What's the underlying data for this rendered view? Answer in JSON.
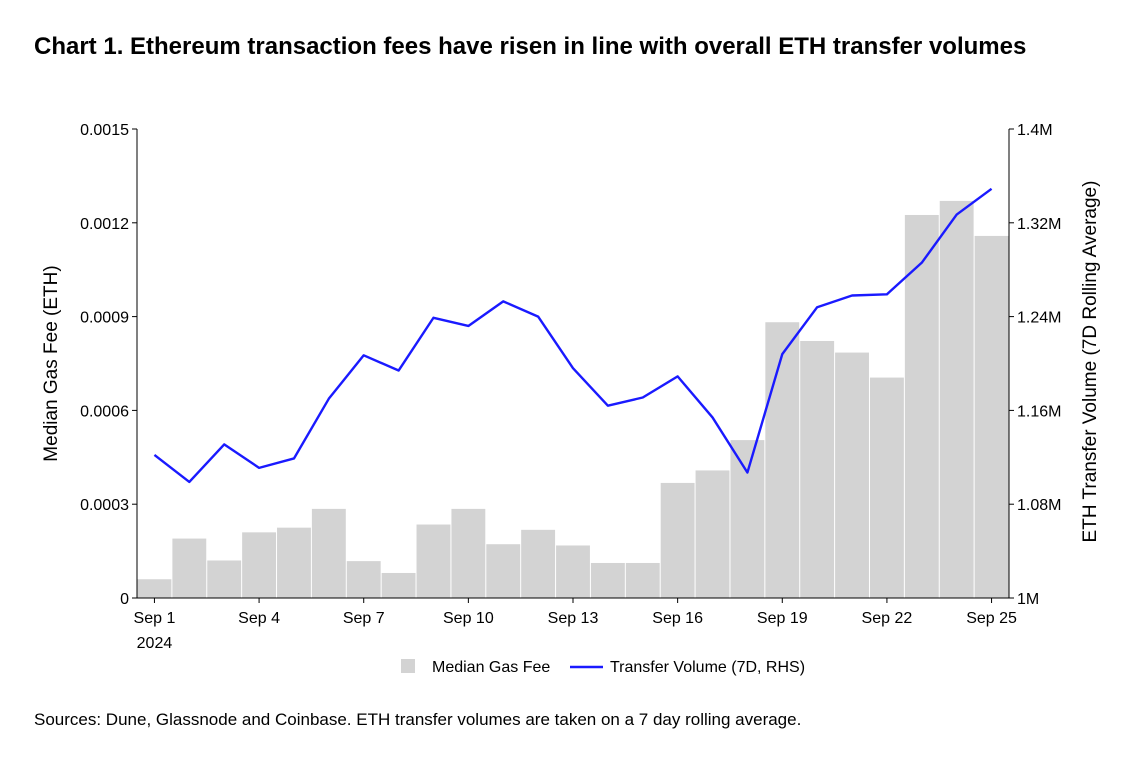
{
  "page": {
    "title": "Chart 1. Ethereum transaction fees have risen in line with overall ETH transfer volumes",
    "source": "Sources: Dune, Glassnode and Coinbase. ETH transfer volumes are taken on a 7 day rolling average."
  },
  "chart_data": {
    "type": "bar",
    "title": "Chart 1. Ethereum transaction fees have risen in line with overall ETH transfer volumes",
    "categories": [
      "Sep 1",
      "Sep 2",
      "Sep 3",
      "Sep 4",
      "Sep 5",
      "Sep 6",
      "Sep 7",
      "Sep 8",
      "Sep 9",
      "Sep 10",
      "Sep 11",
      "Sep 12",
      "Sep 13",
      "Sep 14",
      "Sep 15",
      "Sep 16",
      "Sep 17",
      "Sep 18",
      "Sep 19",
      "Sep 20",
      "Sep 21",
      "Sep 22",
      "Sep 23",
      "Sep 24",
      "Sep 25"
    ],
    "x_tick_labels": [
      {
        "label": "Sep 1",
        "sublabel": "2024",
        "index": 0
      },
      {
        "label": "Sep 4",
        "index": 3
      },
      {
        "label": "Sep 7",
        "index": 6
      },
      {
        "label": "Sep 10",
        "index": 9
      },
      {
        "label": "Sep 13",
        "index": 12
      },
      {
        "label": "Sep 16",
        "index": 15
      },
      {
        "label": "Sep 19",
        "index": 18
      },
      {
        "label": "Sep 22",
        "index": 21
      },
      {
        "label": "Sep 25",
        "index": 24
      }
    ],
    "ylabel": "Median Gas Fee (ETH)",
    "y2label": "ETH Transfer Volume (7D Rolling Average)",
    "ylim": [
      0,
      0.0015
    ],
    "y2lim": [
      1000000,
      1400000
    ],
    "yticks": [
      "0",
      "0.0003",
      "0.0006",
      "0.0009",
      "0.0012",
      "0.0015"
    ],
    "y2ticks": [
      "1M",
      "1.08M",
      "1.16M",
      "1.24M",
      "1.32M",
      "1.4M"
    ],
    "grid": false,
    "legend_position": "bottom",
    "series": [
      {
        "name": "Median Gas Fee",
        "type": "bar",
        "axis": "left",
        "color": "#d3d3d3",
        "values": [
          6e-05,
          0.00019,
          0.00012,
          0.00021,
          0.000225,
          0.000285,
          0.000118,
          8e-05,
          0.000235,
          0.000285,
          0.000172,
          0.000218,
          0.000168,
          0.000112,
          0.000112,
          0.000368,
          0.000408,
          0.000505,
          0.000882,
          0.000822,
          0.000785,
          0.000705,
          0.001225,
          0.00127,
          0.001158
        ]
      },
      {
        "name": "Transfer Volume (7D, RHS)",
        "type": "line",
        "axis": "right",
        "color": "#1a1aff",
        "values": [
          1122000,
          1099000,
          1131000,
          1111000,
          1119000,
          1170000,
          1207000,
          1194000,
          1239000,
          1232000,
          1253000,
          1240000,
          1196000,
          1164000,
          1171000,
          1189000,
          1154000,
          1107000,
          1208000,
          1248000,
          1258000,
          1259000,
          1286000,
          1327000,
          1349000
        ]
      }
    ]
  }
}
